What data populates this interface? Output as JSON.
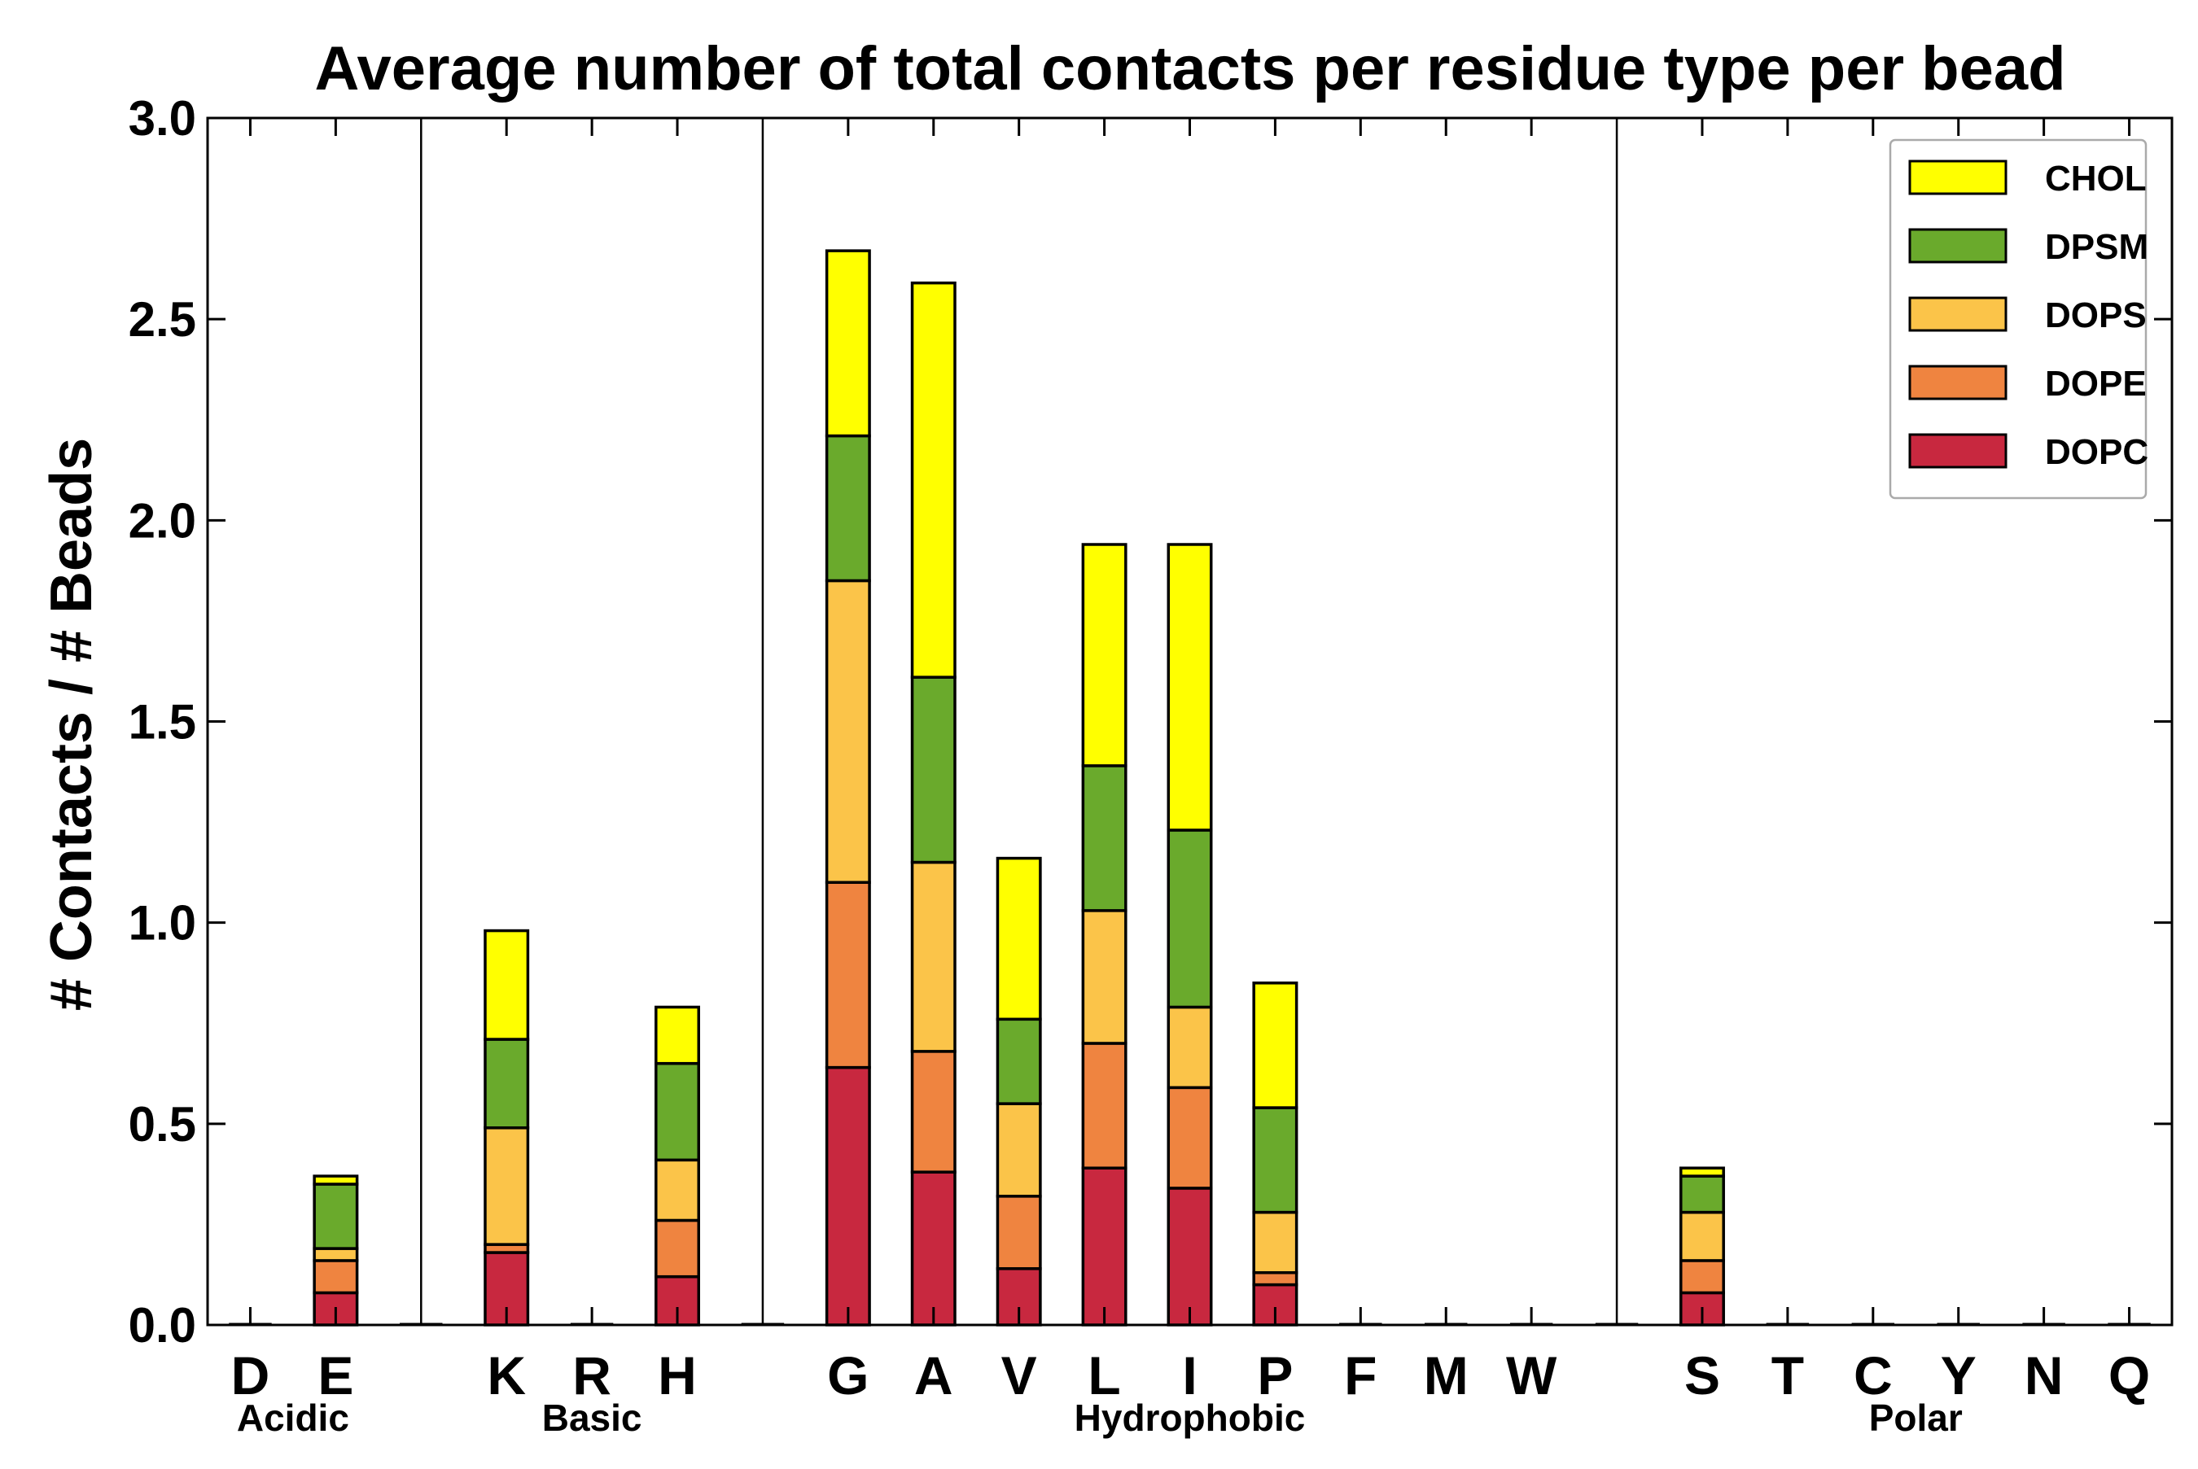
{
  "chart_data": {
    "type": "bar",
    "stacked": true,
    "title": "Average number of total contacts per residue type per bead",
    "xlabel": "",
    "ylabel": "# Contacts / # Beads",
    "ylim": [
      0,
      3.0
    ],
    "yticks": [
      "0.0",
      "0.5",
      "1.0",
      "1.5",
      "2.0",
      "2.5",
      "3.0"
    ],
    "grid": false,
    "legend_position": "top-right",
    "categories": [
      "D",
      "E",
      "",
      "K",
      "R",
      "H",
      "",
      "G",
      "A",
      "V",
      "L",
      "I",
      "P",
      "F",
      "M",
      "W",
      "",
      "S",
      "T",
      "C",
      "Y",
      "N",
      "Q"
    ],
    "groups": [
      {
        "label": "Acidic",
        "members": [
          "D",
          "E"
        ]
      },
      {
        "label": "Basic",
        "members": [
          "K",
          "R",
          "H"
        ]
      },
      {
        "label": "Hydrophobic",
        "members": [
          "G",
          "A",
          "V",
          "L",
          "I",
          "P",
          "F",
          "M",
          "W"
        ]
      },
      {
        "label": "Polar",
        "members": [
          "S",
          "T",
          "C",
          "Y",
          "N",
          "Q"
        ]
      }
    ],
    "series": [
      {
        "name": "DOPC",
        "color": "#c8283f",
        "values": [
          0,
          0.08,
          0,
          0.18,
          0,
          0.12,
          0,
          0.64,
          0.38,
          0.14,
          0.39,
          0.34,
          0.1,
          0,
          0,
          0,
          0,
          0.08,
          0,
          0,
          0,
          0,
          0
        ]
      },
      {
        "name": "DOPE",
        "color": "#ef8440",
        "values": [
          0,
          0.08,
          0,
          0.02,
          0,
          0.14,
          0,
          0.46,
          0.3,
          0.18,
          0.31,
          0.25,
          0.03,
          0,
          0,
          0,
          0,
          0.08,
          0,
          0,
          0,
          0,
          0
        ]
      },
      {
        "name": "DOPS",
        "color": "#fbc449",
        "values": [
          0,
          0.03,
          0,
          0.29,
          0,
          0.15,
          0,
          0.75,
          0.47,
          0.23,
          0.33,
          0.2,
          0.15,
          0,
          0,
          0,
          0,
          0.12,
          0,
          0,
          0,
          0,
          0
        ]
      },
      {
        "name": "DPSM",
        "color": "#6aaa2c",
        "values": [
          0,
          0.16,
          0,
          0.22,
          0,
          0.24,
          0,
          0.36,
          0.46,
          0.21,
          0.36,
          0.44,
          0.26,
          0,
          0,
          0,
          0,
          0.09,
          0,
          0,
          0,
          0,
          0
        ]
      },
      {
        "name": "CHOL",
        "color": "#ffff00",
        "values": [
          0,
          0.02,
          0,
          0.27,
          0,
          0.14,
          0,
          0.46,
          0.98,
          0.4,
          0.55,
          0.71,
          0.31,
          0,
          0,
          0,
          0,
          0.02,
          0,
          0,
          0,
          0,
          0
        ]
      }
    ],
    "legend_order": [
      "CHOL",
      "DPSM",
      "DOPS",
      "DOPE",
      "DOPC"
    ]
  }
}
